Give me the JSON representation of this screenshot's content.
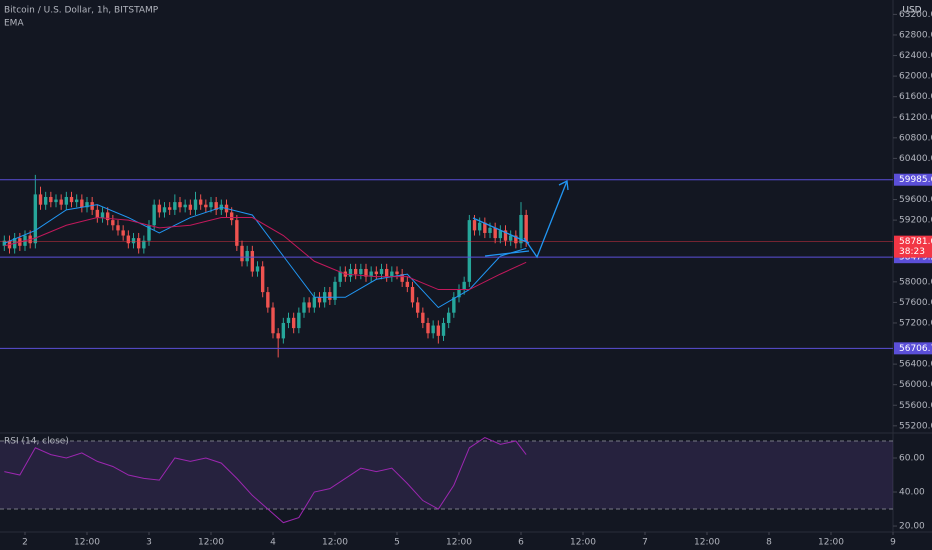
{
  "header": {
    "title": "Bitcoin / U.S. Dollar, 1h, BITSTAMP",
    "indicator": "EMA",
    "currency": "USD"
  },
  "chart_data": [
    {
      "type": "candlestick",
      "up_color": "#26a69a",
      "down_color": "#ef5350",
      "xlim": [
        -4.84,
        168
      ],
      "ylim": [
        55080,
        63480
      ],
      "yticks": [
        {
          "value": 63200,
          "label": "63200.00"
        },
        {
          "value": 62800,
          "label": "62800.00"
        },
        {
          "value": 62400,
          "label": "62400.00"
        },
        {
          "value": 62000,
          "label": "62000.00"
        },
        {
          "value": 61600,
          "label": "61600.00"
        },
        {
          "value": 61200,
          "label": "61200.00"
        },
        {
          "value": 60800,
          "label": "60800.00"
        },
        {
          "value": 60400,
          "label": "60400.00"
        },
        {
          "value": 59600,
          "label": "59600.00"
        },
        {
          "value": 59200,
          "label": "59200.00"
        },
        {
          "value": 58000,
          "label": "58000.00"
        },
        {
          "value": 57600,
          "label": "57600.00"
        },
        {
          "value": 57200,
          "label": "57200.00"
        },
        {
          "value": 56400,
          "label": "56400.00"
        },
        {
          "value": 56000,
          "label": "56000.00"
        },
        {
          "value": 55600,
          "label": "55600.00"
        },
        {
          "value": 55200,
          "label": "55200.00"
        }
      ],
      "x": [
        -4,
        -3,
        -2,
        -1,
        0,
        1,
        2,
        3,
        4,
        5,
        6,
        7,
        8,
        9,
        10,
        11,
        12,
        13,
        14,
        15,
        16,
        17,
        18,
        19,
        20,
        21,
        22,
        23,
        24,
        25,
        26,
        27,
        28,
        29,
        30,
        31,
        32,
        33,
        34,
        35,
        36,
        37,
        38,
        39,
        40,
        41,
        42,
        43,
        44,
        45,
        46,
        47,
        48,
        49,
        50,
        51,
        52,
        53,
        54,
        55,
        56,
        57,
        58,
        59,
        60,
        61,
        62,
        63,
        64,
        65,
        66,
        67,
        68,
        69,
        70,
        71,
        72,
        73,
        74,
        75,
        76,
        77,
        78,
        79,
        80,
        81,
        82,
        83,
        84,
        85,
        86,
        87,
        88,
        89,
        90,
        91,
        92,
        93,
        94,
        95,
        96,
        97
      ],
      "open": [
        58700,
        58800,
        58650,
        58850,
        58700,
        58900,
        58750,
        59700,
        59500,
        59650,
        59550,
        59600,
        59500,
        59650,
        59550,
        59600,
        59450,
        59550,
        59400,
        59250,
        59350,
        59200,
        59100,
        59000,
        58900,
        58750,
        58850,
        58650,
        58800,
        59100,
        59500,
        59350,
        59450,
        59400,
        59550,
        59450,
        59500,
        59400,
        59600,
        59500,
        59450,
        59550,
        59400,
        59500,
        59350,
        59200,
        58700,
        58400,
        58600,
        58200,
        58300,
        57800,
        57500,
        57000,
        56900,
        57200,
        57300,
        57100,
        57400,
        57600,
        57500,
        57700,
        57600,
        57800,
        57650,
        58000,
        58200,
        58100,
        58250,
        58150,
        58250,
        58100,
        58200,
        58150,
        58250,
        58100,
        58200,
        58150,
        58000,
        57900,
        57600,
        57400,
        57200,
        57000,
        57150,
        56950,
        57200,
        57400,
        57700,
        57850,
        58000,
        59200,
        59000,
        59150,
        58950,
        59050,
        58850,
        59000,
        58800,
        58900,
        58750,
        59300
      ],
      "high": [
        58900,
        58900,
        58950,
        58950,
        59000,
        59000,
        60080,
        59850,
        59750,
        59750,
        59700,
        59700,
        59750,
        59750,
        59700,
        59700,
        59650,
        59650,
        59500,
        59450,
        59450,
        59300,
        59200,
        59100,
        59000,
        58950,
        58950,
        58900,
        59200,
        59600,
        59600,
        59550,
        59550,
        59700,
        59650,
        59600,
        59600,
        59750,
        59700,
        59600,
        59650,
        59650,
        59600,
        59600,
        59450,
        59300,
        58800,
        58700,
        58700,
        58400,
        58400,
        57900,
        57600,
        57100,
        57300,
        57400,
        57400,
        57500,
        57700,
        57700,
        57800,
        57800,
        57900,
        57900,
        58100,
        58300,
        58300,
        58350,
        58350,
        58350,
        58350,
        58300,
        58300,
        58350,
        58350,
        58300,
        58300,
        58250,
        58100,
        58000,
        57700,
        57500,
        57300,
        57250,
        57250,
        57300,
        57500,
        57800,
        57950,
        58100,
        59300,
        59300,
        59250,
        59250,
        59150,
        59150,
        59100,
        59100,
        59000,
        59000,
        59550,
        59400
      ],
      "low": [
        58600,
        58550,
        58550,
        58600,
        58600,
        58650,
        58650,
        59400,
        59400,
        59450,
        59450,
        59400,
        59400,
        59450,
        59450,
        59350,
        59350,
        59300,
        59150,
        59150,
        59100,
        59000,
        58900,
        58800,
        58650,
        58650,
        58550,
        58550,
        58700,
        59000,
        59250,
        59250,
        59300,
        59300,
        59350,
        59350,
        59300,
        59300,
        59400,
        59350,
        59350,
        59300,
        59300,
        59250,
        59100,
        58600,
        58300,
        58300,
        58100,
        58100,
        57700,
        57400,
        56900,
        56530,
        56800,
        57100,
        57000,
        57000,
        57300,
        57400,
        57400,
        57500,
        57500,
        57550,
        57550,
        57900,
        58000,
        58000,
        58050,
        58050,
        58000,
        58000,
        58050,
        58050,
        58000,
        58000,
        58050,
        57900,
        57800,
        57500,
        57300,
        57100,
        56900,
        56900,
        56800,
        56850,
        57100,
        57300,
        57600,
        57750,
        57900,
        58900,
        58900,
        58850,
        58850,
        58750,
        58750,
        58700,
        58700,
        58650,
        58650,
        58680
      ],
      "close": [
        58800,
        58650,
        58850,
        58700,
        58900,
        58750,
        59700,
        59500,
        59650,
        59550,
        59600,
        59500,
        59650,
        59550,
        59600,
        59450,
        59550,
        59400,
        59250,
        59350,
        59200,
        59100,
        59000,
        58900,
        58750,
        58850,
        58650,
        58800,
        59100,
        59500,
        59350,
        59450,
        59400,
        59550,
        59450,
        59500,
        59400,
        59600,
        59500,
        59450,
        59550,
        59400,
        59500,
        59350,
        59200,
        58700,
        58400,
        58600,
        58200,
        58300,
        57800,
        57500,
        57000,
        56900,
        57200,
        57300,
        57100,
        57400,
        57600,
        57500,
        57700,
        57600,
        57800,
        57650,
        58000,
        58200,
        58100,
        58250,
        58150,
        58250,
        58100,
        58200,
        58150,
        58250,
        58100,
        58200,
        58150,
        58000,
        57900,
        57600,
        57400,
        57200,
        57000,
        57150,
        56950,
        57200,
        57400,
        57700,
        57850,
        58000,
        59200,
        59000,
        59150,
        58950,
        59050,
        58850,
        59000,
        58800,
        58900,
        58750,
        59300,
        58781
      ],
      "ema": [
        {
          "color": "#2196f3",
          "x": [
            -4,
            2,
            8,
            14,
            20,
            26,
            32,
            38,
            44,
            50,
            56,
            62,
            68,
            74,
            80,
            86,
            92,
            97
          ],
          "values": [
            58750,
            59000,
            59400,
            59500,
            59250,
            58950,
            59250,
            59450,
            59300,
            58500,
            57700,
            57700,
            58050,
            58150,
            57500,
            57850,
            58500,
            58650
          ]
        },
        {
          "color": "#c2185b",
          "x": [
            -4,
            2,
            8,
            14,
            20,
            26,
            32,
            38,
            44,
            50,
            56,
            62,
            68,
            74,
            80,
            86,
            92,
            97
          ],
          "values": [
            58700,
            58850,
            59100,
            59250,
            59200,
            59050,
            59100,
            59250,
            59250,
            58900,
            58400,
            58150,
            58100,
            58100,
            57850,
            57850,
            58150,
            58380
          ]
        }
      ],
      "levels": [
        {
          "value": 59985.69,
          "color": "#5b4fd8"
        },
        {
          "value": 58479.22,
          "color": "#5b4fd8"
        },
        {
          "value": 56706.75,
          "color": "#5b4fd8"
        }
      ],
      "current_price": {
        "value": 58781,
        "label": "58781.00",
        "color": "#f23645"
      },
      "countdown": "38:23"
    },
    {
      "type": "line",
      "title": "RSI (14, close)",
      "color": "#9c27b0",
      "band_color": "#7e57c2",
      "xlim": [
        -4.84,
        168
      ],
      "ylim": [
        16.5,
        74.1
      ],
      "bands": [
        30,
        70
      ],
      "yticks": [
        {
          "value": 60,
          "label": "60.00"
        },
        {
          "value": 40,
          "label": "40.00"
        },
        {
          "value": 20,
          "label": "20.00"
        }
      ],
      "xticks": [
        {
          "value": 0,
          "label": "2"
        },
        {
          "value": 12,
          "label": "12:00"
        },
        {
          "value": 24,
          "label": "3"
        },
        {
          "value": 36,
          "label": "12:00"
        },
        {
          "value": 48,
          "label": "4"
        },
        {
          "value": 60,
          "label": "12:00"
        },
        {
          "value": 72,
          "label": "5"
        },
        {
          "value": 84,
          "label": "12:00"
        },
        {
          "value": 96,
          "label": "6"
        },
        {
          "value": 108,
          "label": "12:00"
        },
        {
          "value": 120,
          "label": "7"
        },
        {
          "value": 132,
          "label": "12:00"
        },
        {
          "value": 144,
          "label": "8"
        },
        {
          "value": 156,
          "label": "12:00"
        },
        {
          "value": 168,
          "label": "9"
        }
      ],
      "x": [
        -4,
        -1,
        2,
        5,
        8,
        11,
        14,
        17,
        20,
        23,
        26,
        29,
        32,
        35,
        38,
        41,
        44,
        47,
        50,
        53,
        56,
        59,
        62,
        65,
        68,
        71,
        74,
        77,
        80,
        83,
        86,
        89,
        92,
        95,
        97
      ],
      "values": [
        52,
        50,
        66,
        62,
        60,
        63,
        58,
        55,
        50,
        48,
        47,
        60,
        58,
        60,
        57,
        48,
        38,
        30,
        22,
        25,
        40,
        42,
        48,
        54,
        52,
        54,
        45,
        35,
        30,
        44,
        66,
        72,
        68,
        70,
        62
      ]
    }
  ]
}
